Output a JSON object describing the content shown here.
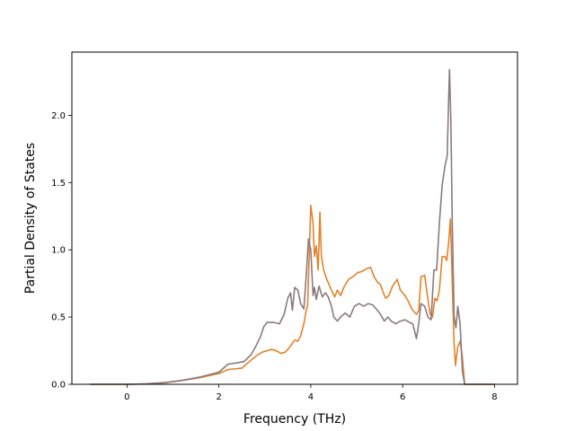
{
  "chart_data": {
    "type": "line",
    "title": "",
    "xlabel": "Frequency (THz)",
    "ylabel": "Partial Density of States",
    "xlim": [
      -1.2,
      8.5
    ],
    "ylim": [
      0.0,
      2.47
    ],
    "xticks": [
      0,
      2,
      4,
      6,
      8
    ],
    "xtick_labels": [
      "0",
      "2",
      "4",
      "6",
      "8"
    ],
    "yticks": [
      0.0,
      0.5,
      1.0,
      1.5,
      2.0
    ],
    "ytick_labels": [
      "0.0",
      "0.5",
      "1.0",
      "1.5",
      "2.0"
    ],
    "grid": false,
    "legend": "none",
    "series": [
      {
        "color": "#e5822a",
        "points": [
          [
            -0.8,
            0
          ],
          [
            0,
            0
          ],
          [
            0.4,
            0.003
          ],
          [
            0.8,
            0.01
          ],
          [
            1.2,
            0.028
          ],
          [
            1.6,
            0.05
          ],
          [
            2.0,
            0.08
          ],
          [
            2.2,
            0.11
          ],
          [
            2.5,
            0.12
          ],
          [
            2.7,
            0.18
          ],
          [
            2.85,
            0.22
          ],
          [
            2.95,
            0.24
          ],
          [
            3.05,
            0.25
          ],
          [
            3.15,
            0.26
          ],
          [
            3.25,
            0.25
          ],
          [
            3.35,
            0.23
          ],
          [
            3.45,
            0.24
          ],
          [
            3.55,
            0.28
          ],
          [
            3.65,
            0.33
          ],
          [
            3.72,
            0.32
          ],
          [
            3.78,
            0.36
          ],
          [
            3.85,
            0.45
          ],
          [
            3.9,
            0.55
          ],
          [
            3.93,
            0.58
          ],
          [
            3.97,
            1.0
          ],
          [
            4.0,
            1.33
          ],
          [
            4.05,
            1.2
          ],
          [
            4.08,
            0.95
          ],
          [
            4.12,
            1.03
          ],
          [
            4.16,
            0.85
          ],
          [
            4.2,
            1.28
          ],
          [
            4.23,
            0.96
          ],
          [
            4.28,
            0.85
          ],
          [
            4.35,
            0.78
          ],
          [
            4.45,
            0.7
          ],
          [
            4.52,
            0.65
          ],
          [
            4.58,
            0.7
          ],
          [
            4.65,
            0.66
          ],
          [
            4.72,
            0.72
          ],
          [
            4.82,
            0.78
          ],
          [
            4.92,
            0.8
          ],
          [
            5.02,
            0.83
          ],
          [
            5.12,
            0.84
          ],
          [
            5.22,
            0.86
          ],
          [
            5.3,
            0.87
          ],
          [
            5.38,
            0.8
          ],
          [
            5.45,
            0.76
          ],
          [
            5.52,
            0.74
          ],
          [
            5.58,
            0.68
          ],
          [
            5.63,
            0.64
          ],
          [
            5.7,
            0.66
          ],
          [
            5.78,
            0.73
          ],
          [
            5.88,
            0.78
          ],
          [
            5.95,
            0.7
          ],
          [
            6.05,
            0.66
          ],
          [
            6.12,
            0.62
          ],
          [
            6.2,
            0.56
          ],
          [
            6.3,
            0.52
          ],
          [
            6.35,
            0.55
          ],
          [
            6.4,
            0.8
          ],
          [
            6.48,
            0.81
          ],
          [
            6.53,
            0.68
          ],
          [
            6.6,
            0.52
          ],
          [
            6.65,
            0.5
          ],
          [
            6.7,
            0.64
          ],
          [
            6.75,
            0.62
          ],
          [
            6.8,
            0.7
          ],
          [
            6.86,
            0.95
          ],
          [
            6.92,
            0.95
          ],
          [
            6.96,
            0.92
          ],
          [
            7.0,
            1.05
          ],
          [
            7.04,
            1.23
          ],
          [
            7.08,
            0.75
          ],
          [
            7.12,
            0.3
          ],
          [
            7.15,
            0.14
          ],
          [
            7.2,
            0.28
          ],
          [
            7.25,
            0.32
          ],
          [
            7.3,
            0.2
          ],
          [
            7.35,
            0.0
          ],
          [
            8.0,
            0.0
          ]
        ]
      },
      {
        "color": "#8a7a80",
        "points": [
          [
            -0.8,
            0
          ],
          [
            0,
            0
          ],
          [
            0.4,
            0.003
          ],
          [
            0.8,
            0.012
          ],
          [
            1.2,
            0.03
          ],
          [
            1.6,
            0.055
          ],
          [
            2.0,
            0.09
          ],
          [
            2.2,
            0.15
          ],
          [
            2.4,
            0.16
          ],
          [
            2.55,
            0.17
          ],
          [
            2.7,
            0.22
          ],
          [
            2.8,
            0.28
          ],
          [
            2.9,
            0.35
          ],
          [
            2.98,
            0.43
          ],
          [
            3.05,
            0.46
          ],
          [
            3.2,
            0.46
          ],
          [
            3.32,
            0.45
          ],
          [
            3.42,
            0.52
          ],
          [
            3.5,
            0.64
          ],
          [
            3.56,
            0.68
          ],
          [
            3.6,
            0.55
          ],
          [
            3.65,
            0.72
          ],
          [
            3.72,
            0.7
          ],
          [
            3.78,
            0.6
          ],
          [
            3.85,
            0.56
          ],
          [
            3.9,
            0.8
          ],
          [
            3.95,
            1.08
          ],
          [
            4.0,
            1.0
          ],
          [
            4.05,
            0.66
          ],
          [
            4.08,
            0.72
          ],
          [
            4.12,
            0.63
          ],
          [
            4.18,
            0.73
          ],
          [
            4.25,
            0.65
          ],
          [
            4.32,
            0.68
          ],
          [
            4.38,
            0.65
          ],
          [
            4.45,
            0.58
          ],
          [
            4.5,
            0.5
          ],
          [
            4.58,
            0.47
          ],
          [
            4.65,
            0.5
          ],
          [
            4.75,
            0.53
          ],
          [
            4.85,
            0.5
          ],
          [
            4.95,
            0.58
          ],
          [
            5.05,
            0.6
          ],
          [
            5.15,
            0.58
          ],
          [
            5.25,
            0.6
          ],
          [
            5.35,
            0.59
          ],
          [
            5.45,
            0.55
          ],
          [
            5.52,
            0.52
          ],
          [
            5.6,
            0.47
          ],
          [
            5.68,
            0.5
          ],
          [
            5.75,
            0.47
          ],
          [
            5.85,
            0.45
          ],
          [
            5.95,
            0.47
          ],
          [
            6.05,
            0.48
          ],
          [
            6.15,
            0.46
          ],
          [
            6.22,
            0.45
          ],
          [
            6.3,
            0.34
          ],
          [
            6.35,
            0.45
          ],
          [
            6.4,
            0.6
          ],
          [
            6.48,
            0.58
          ],
          [
            6.55,
            0.5
          ],
          [
            6.62,
            0.48
          ],
          [
            6.68,
            0.85
          ],
          [
            6.74,
            0.85
          ],
          [
            6.8,
            1.2
          ],
          [
            6.86,
            1.48
          ],
          [
            6.92,
            1.62
          ],
          [
            6.97,
            1.7
          ],
          [
            7.0,
            2.1
          ],
          [
            7.02,
            2.34
          ],
          [
            7.05,
            1.95
          ],
          [
            7.08,
            1.2
          ],
          [
            7.12,
            0.5
          ],
          [
            7.16,
            0.42
          ],
          [
            7.2,
            0.58
          ],
          [
            7.25,
            0.45
          ],
          [
            7.3,
            0.1
          ],
          [
            7.35,
            0.0
          ],
          [
            8.0,
            0.0
          ]
        ]
      }
    ]
  }
}
